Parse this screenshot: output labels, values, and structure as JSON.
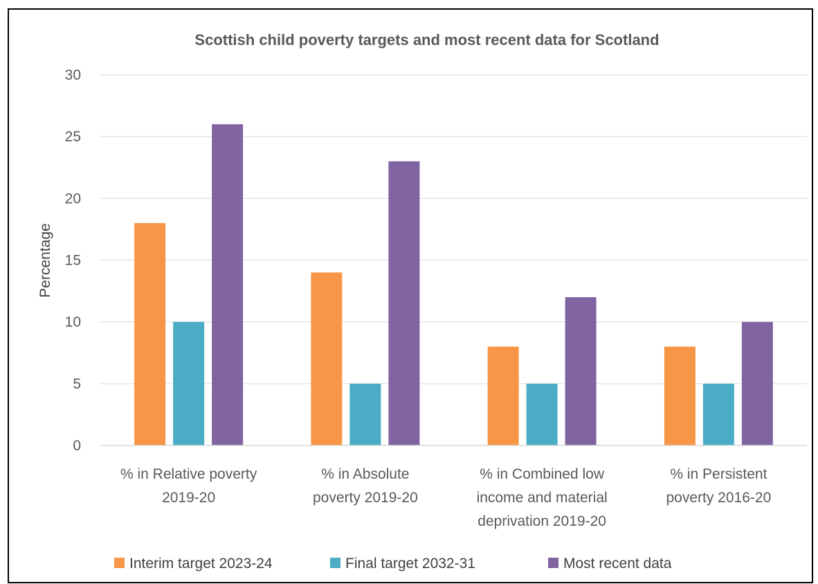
{
  "chart_data": {
    "type": "bar",
    "title": "Scottish child poverty targets and most recent data for Scotland",
    "ylabel": "Percentage",
    "xlabel": "",
    "ylim": [
      0,
      30
    ],
    "yticks": [
      0,
      5,
      10,
      15,
      20,
      25,
      30
    ],
    "grid": true,
    "legend_position": "bottom",
    "categories": [
      [
        "% in Relative poverty",
        "2019-20"
      ],
      [
        "% in Absolute",
        "poverty 2019-20"
      ],
      [
        "% in Combined low",
        "income and material",
        "deprivation 2019-20"
      ],
      [
        "% in Persistent",
        "poverty 2016-20"
      ]
    ],
    "series": [
      {
        "name": "Interim target 2023-24",
        "color": "#F79646",
        "values": [
          18,
          14,
          8,
          8
        ]
      },
      {
        "name": "Final target 2032-31",
        "color": "#4BACC6",
        "values": [
          10,
          5,
          5,
          5
        ]
      },
      {
        "name": "Most recent data",
        "color": "#8064A2",
        "values": [
          26,
          23,
          12,
          10
        ]
      }
    ]
  }
}
